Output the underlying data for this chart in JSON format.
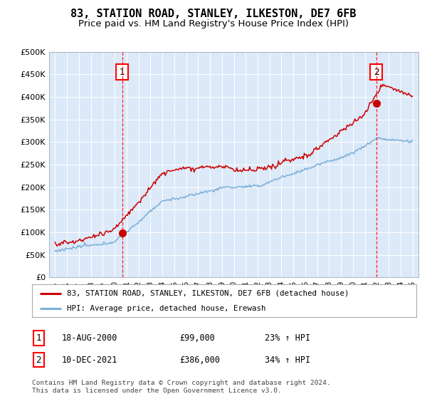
{
  "title": "83, STATION ROAD, STANLEY, ILKESTON, DE7 6FB",
  "subtitle": "Price paid vs. HM Land Registry's House Price Index (HPI)",
  "ylim": [
    0,
    500000
  ],
  "yticks": [
    0,
    50000,
    100000,
    150000,
    200000,
    250000,
    300000,
    350000,
    400000,
    450000,
    500000
  ],
  "ytick_labels": [
    "£0",
    "£50K",
    "£100K",
    "£150K",
    "£200K",
    "£250K",
    "£300K",
    "£350K",
    "£400K",
    "£450K",
    "£500K"
  ],
  "plot_bg_color": "#dce9f8",
  "hpi_color": "#7ab0d8",
  "price_color": "#cc0000",
  "sale1_year": 2000.63,
  "sale1_val": 99000,
  "sale2_year": 2021.95,
  "sale2_val": 386000,
  "legend_label_price": "83, STATION ROAD, STANLEY, ILKESTON, DE7 6FB (detached house)",
  "legend_label_hpi": "HPI: Average price, detached house, Erewash",
  "annotation1_label": "1",
  "annotation1_date": "18-AUG-2000",
  "annotation1_price": "£99,000",
  "annotation1_hpi": "23% ↑ HPI",
  "annotation2_label": "2",
  "annotation2_date": "10-DEC-2021",
  "annotation2_price": "£386,000",
  "annotation2_hpi": "34% ↑ HPI",
  "footer": "Contains HM Land Registry data © Crown copyright and database right 2024.\nThis data is licensed under the Open Government Licence v3.0.",
  "title_fontsize": 11,
  "subtitle_fontsize": 9.5
}
